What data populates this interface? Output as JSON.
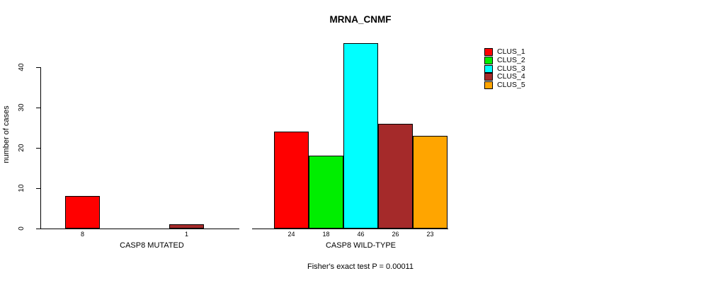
{
  "chart_data": {
    "type": "bar",
    "title": "MRNA_CNMF",
    "ylabel": "number of cases",
    "footer": "Fisher's exact test P = 0.00011",
    "ylim": [
      0,
      46
    ],
    "yticks": [
      0,
      10,
      20,
      30,
      40
    ],
    "grid": false,
    "series_names": [
      "CLUS_1",
      "CLUS_2",
      "CLUS_3",
      "CLUS_4",
      "CLUS_5"
    ],
    "colors": [
      "#FF0000",
      "#00EE00",
      "#00FFFF",
      "#A52A2A",
      "#FFA500"
    ],
    "groups": [
      {
        "label": "CASP8 MUTATED",
        "values": [
          8,
          0,
          0,
          1,
          0
        ]
      },
      {
        "label": "CASP8 WILD-TYPE",
        "values": [
          24,
          18,
          46,
          26,
          23
        ]
      }
    ],
    "bar_value_labels": [
      [
        "8",
        "",
        "",
        "1",
        ""
      ],
      [
        "24",
        "18",
        "46",
        "26",
        "23"
      ]
    ],
    "legend": {
      "position": "top-right",
      "entries": [
        {
          "label": "CLUS_1",
          "color": "#FF0000"
        },
        {
          "label": "CLUS_2",
          "color": "#00EE00"
        },
        {
          "label": "CLUS_3",
          "color": "#00FFFF"
        },
        {
          "label": "CLUS_4",
          "color": "#A52A2A"
        },
        {
          "label": "CLUS_5",
          "color": "#FFA500"
        }
      ]
    },
    "axis_color": "#000000",
    "background_color": "#FFFFFF"
  }
}
